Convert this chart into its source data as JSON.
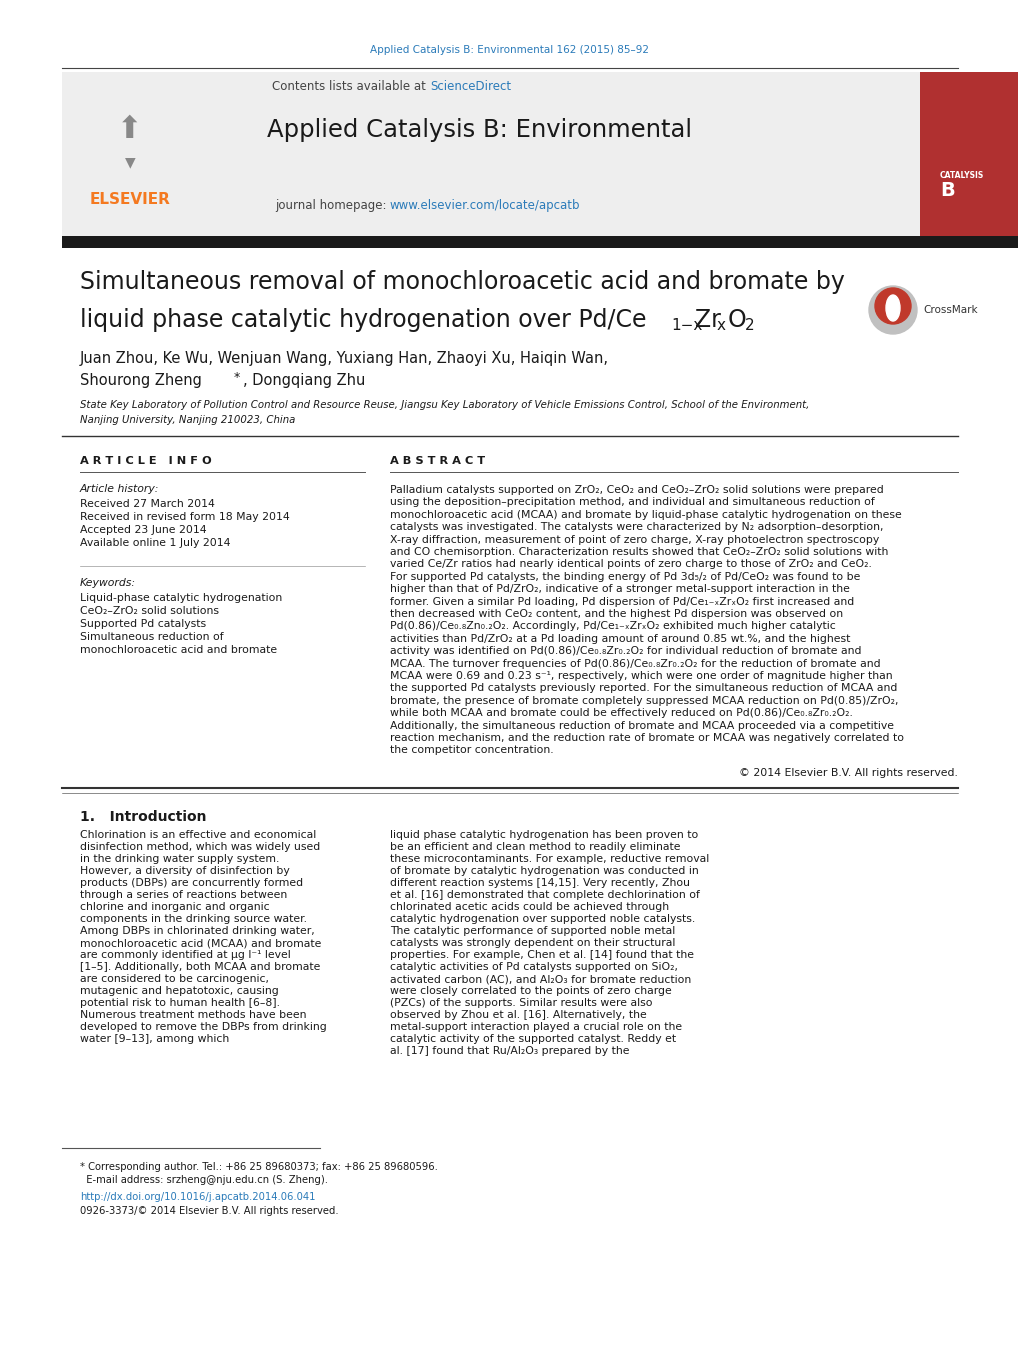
{
  "journal_ref": "Applied Catalysis B: Environmental 162 (2015) 85–92",
  "journal_name": "Applied Catalysis B: Environmental",
  "contents_text": "Contents lists available at ",
  "science_direct": "ScienceDirect",
  "journal_homepage_text": "journal homepage: ",
  "journal_url": "www.elsevier.com/locate/apcatb",
  "title_line1": "Simultaneous removal of monochloroacetic acid and bromate by",
  "title_line2_main": "liquid phase catalytic hydrogenation over Pd/Ce",
  "authors": "Juan Zhou, Ke Wu, Wenjuan Wang, Yuxiang Han, Zhaoyi Xu, Haiqin Wan,",
  "authors2a": "Shourong Zheng",
  "authors2b": ", Dongqiang Zhu",
  "affiliation1": "State Key Laboratory of Pollution Control and Resource Reuse, Jiangsu Key Laboratory of Vehicle Emissions Control, School of the Environment,",
  "affiliation2": "Nanjing University, Nanjing 210023, China",
  "article_info_header": "ARTICLE  INFO",
  "abstract_header": "ABSTRACT",
  "article_history_label": "Article history:",
  "received": "Received 27 March 2014",
  "received_revised": "Received in revised form 18 May 2014",
  "accepted": "Accepted 23 June 2014",
  "available": "Available online 1 July 2014",
  "keywords_label": "Keywords:",
  "keyword1": "Liquid-phase catalytic hydrogenation",
  "keyword2": "CeO₂–ZrO₂ solid solutions",
  "keyword3": "Supported Pd catalysts",
  "keyword4": "Simultaneous reduction of",
  "keyword5": "monochloroacetic acid and bromate",
  "abstract_text": "Palladium catalysts supported on ZrO₂, CeO₂ and CeO₂–ZrO₂ solid solutions were prepared using the deposition–precipitation method, and individual and simultaneous reduction of monochloroacetic acid (MCAA) and bromate by liquid-phase catalytic hydrogenation on these catalysts was investigated. The catalysts were characterized by N₂ adsorption–desorption, X-ray diffraction, measurement of point of zero charge, X-ray photoelectron spectroscopy and CO chemisorption. Characterization results showed that CeO₂–ZrO₂ solid solutions with varied Ce/Zr ratios had nearly identical points of zero charge to those of ZrO₂ and CeO₂. For supported Pd catalysts, the binding energy of Pd 3d₅/₂ of Pd/CeO₂ was found to be higher than that of Pd/ZrO₂, indicative of a stronger metal-support interaction in the former. Given a similar Pd loading, Pd dispersion of Pd/Ce₁₋ₓZrₓO₂ first increased and then decreased with CeO₂ content, and the highest Pd dispersion was observed on Pd(0.86)/Ce₀.₈Zn₀.₂O₂. Accordingly, Pd/Ce₁₋ₓZrₓO₂ exhibited much higher catalytic activities than Pd/ZrO₂ at a Pd loading amount of around 0.85 wt.%, and the highest activity was identified on Pd(0.86)/Ce₀.₈Zr₀.₂O₂ for individual reduction of bromate and MCAA. The turnover frequencies of Pd(0.86)/Ce₀.₈Zr₀.₂O₂ for the reduction of bromate and MCAA were 0.69 and 0.23 s⁻¹, respectively, which were one order of magnitude higher than the supported Pd catalysts previously reported. For the simultaneous reduction of MCAA and bromate, the presence of bromate completely suppressed MCAA reduction on Pd(0.85)/ZrO₂, while both MCAA and bromate could be effectively reduced on Pd(0.86)/Ce₀.₈Zr₀.₂O₂. Additionally, the simultaneous reduction of bromate and MCAA proceeded via a competitive reaction mechanism, and the reduction rate of bromate or MCAA was negatively correlated to the competitor concentration.",
  "copyright": "© 2014 Elsevier B.V. All rights reserved.",
  "intro_header": "1.   Introduction",
  "intro_col1": "Chlorination is an effective and economical disinfection method, which was widely used in the drinking water supply system. However, a diversity of disinfection by products (DBPs) are concurrently formed through a series of reactions between chlorine and inorganic and organic components in the drinking source water. Among DBPs in chlorinated drinking water, monochloroacetic acid (MCAA) and bromate are commonly identified at μg l⁻¹ level [1–5]. Additionally, both MCAA and bromate are considered to be carcinogenic, mutagenic and hepatotoxic, causing potential risk to human health [6–8]. Numerous treatment methods have been developed to remove the DBPs from drinking water [9–13], among which",
  "intro_col2": "liquid phase catalytic hydrogenation has been proven to be an efficient and clean method to readily eliminate these microcontaminants. For example, reductive removal of bromate by catalytic hydrogenation was conducted in different reaction systems [14,15]. Very recently, Zhou et al. [16] demonstrated that complete dechlorination of chlorinated acetic acids could be achieved through catalytic hydrogenation over supported noble catalysts. The catalytic performance of supported noble metal catalysts was strongly dependent on their structural properties. For example, Chen et al. [14] found that the catalytic activities of Pd catalysts supported on SiO₂, activated carbon (AC), and Al₂O₃ for bromate reduction were closely correlated to the points of zero charge (PZCs) of the supports. Similar results were also observed by Zhou et al. [16]. Alternatively, the metal-support interaction played a crucial role on the catalytic activity of the supported catalyst. Reddy et al. [17] found that Ru/Al₂O₃ prepared by the",
  "footnote_line1": "* Corresponding author. Tel.: +86 25 89680373; fax: +86 25 89680596.",
  "footnote_line2": "  E-mail address: srzheng@nju.edu.cn (S. Zheng).",
  "doi": "http://dx.doi.org/10.1016/j.apcatb.2014.06.041",
  "issn": "0926-3373/© 2014 Elsevier B.V. All rights reserved.",
  "bg_color": "#ffffff",
  "elsevier_orange": "#f47920",
  "link_color": "#2b7bb9",
  "dark_color": "#1a1a1a"
}
